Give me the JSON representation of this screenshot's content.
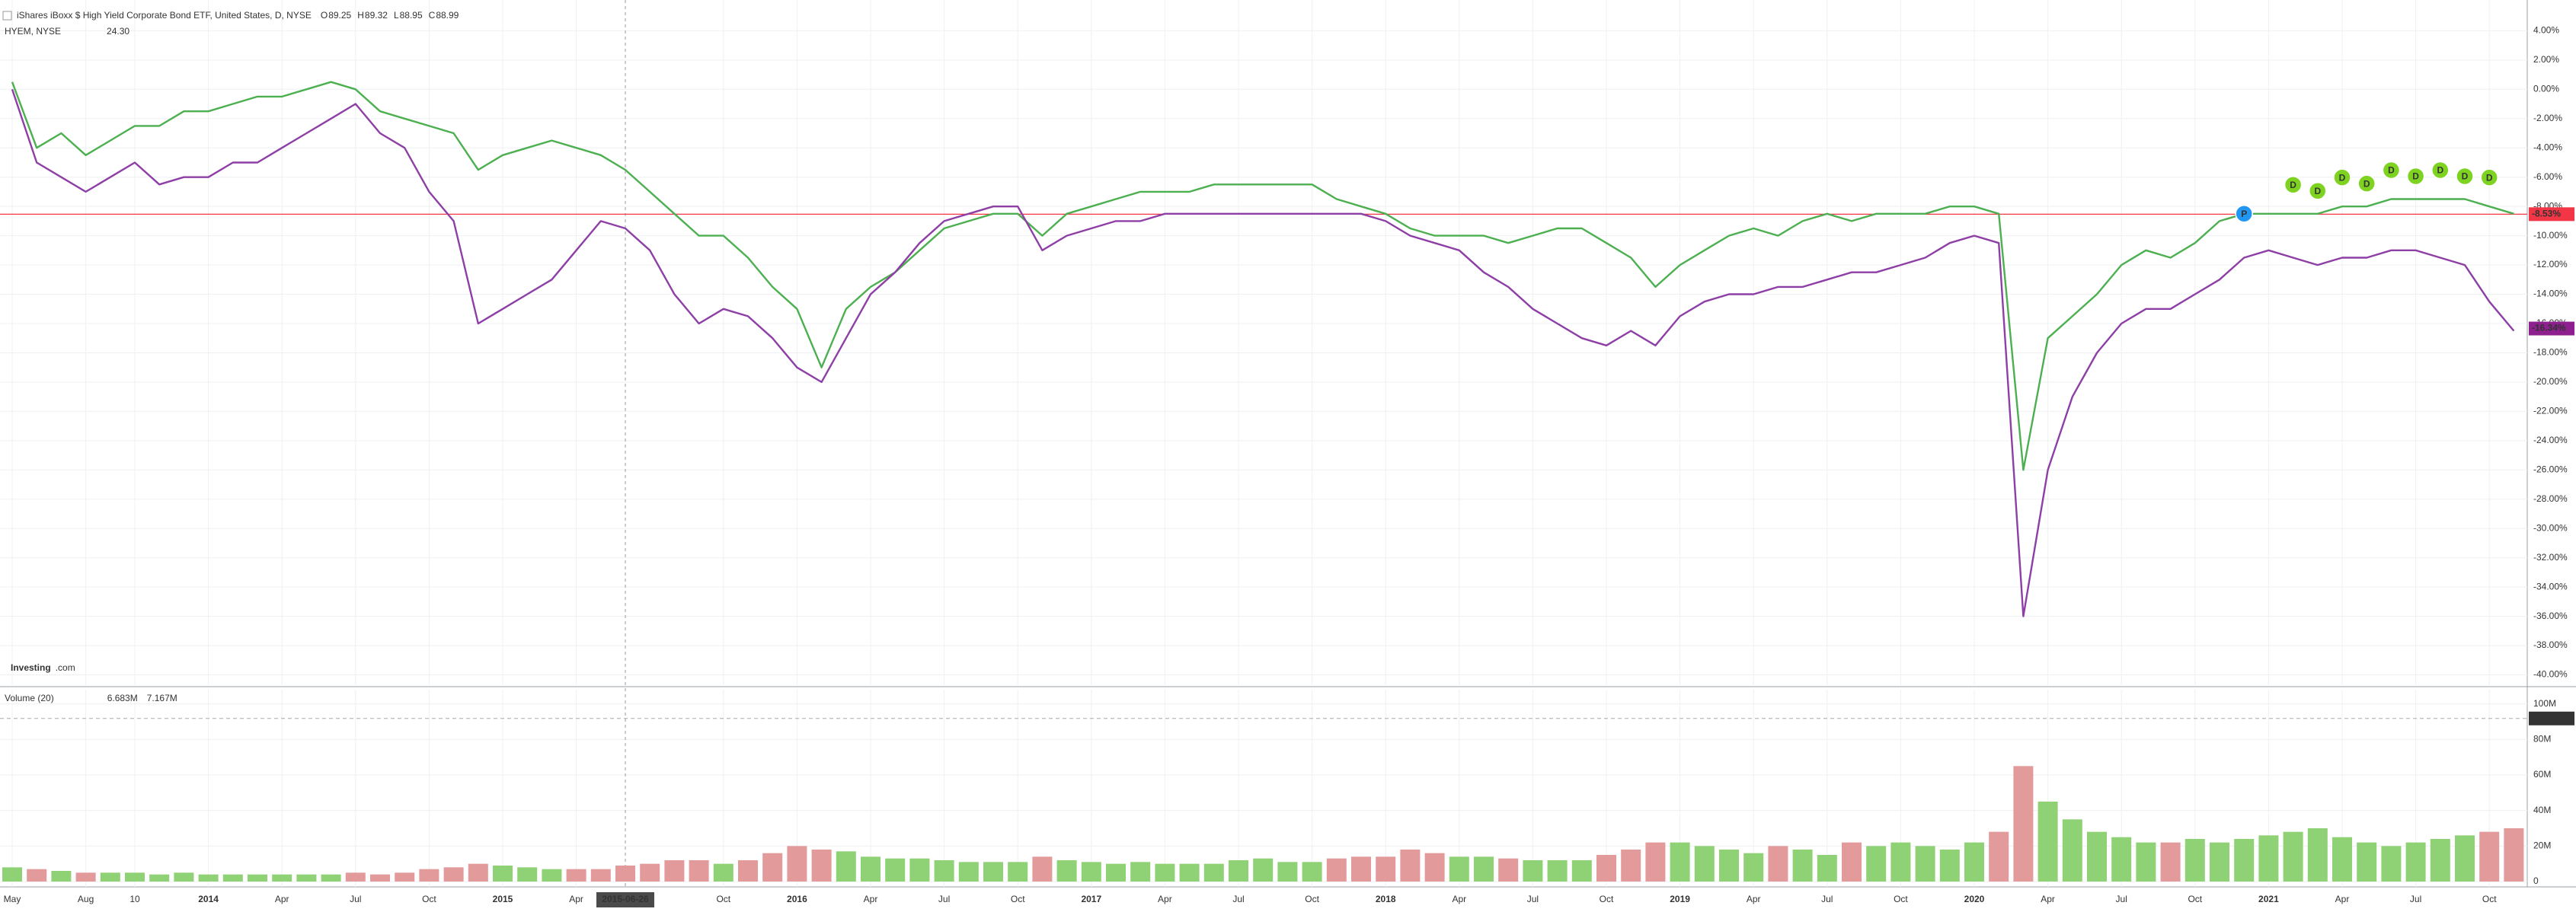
{
  "chart_data": [
    {
      "type": "line",
      "title": "iShares iBoxx $ High Yield Corporate Bond ETF, United States, D, NYSE",
      "ohlc_letters": [
        "O",
        "H",
        "L",
        "C"
      ],
      "ohlc": [
        89.25,
        89.32,
        88.95,
        88.99
      ],
      "logo": "Investing",
      "logo_suffix": ".com",
      "x": [
        "2013-05",
        "2013-06",
        "2013-07",
        "2013-08",
        "2013-09",
        "2013-10",
        "2013-11",
        "2013-12",
        "2014-01",
        "2014-02",
        "2014-03",
        "2014-04",
        "2014-05",
        "2014-06",
        "2014-07",
        "2014-08",
        "2014-09",
        "2014-10",
        "2014-11",
        "2014-12",
        "2015-01",
        "2015-02",
        "2015-03",
        "2015-04",
        "2015-05",
        "2015-06",
        "2015-07",
        "2015-08",
        "2015-09",
        "2015-10",
        "2015-11",
        "2015-12",
        "2016-01",
        "2016-02",
        "2016-03",
        "2016-04",
        "2016-05",
        "2016-06",
        "2016-07",
        "2016-08",
        "2016-09",
        "2016-10",
        "2016-11",
        "2016-12",
        "2017-01",
        "2017-02",
        "2017-03",
        "2017-04",
        "2017-05",
        "2017-06",
        "2017-07",
        "2017-08",
        "2017-09",
        "2017-10",
        "2017-11",
        "2017-12",
        "2018-01",
        "2018-02",
        "2018-03",
        "2018-04",
        "2018-05",
        "2018-06",
        "2018-07",
        "2018-08",
        "2018-09",
        "2018-10",
        "2018-11",
        "2018-12",
        "2019-01",
        "2019-02",
        "2019-03",
        "2019-04",
        "2019-05",
        "2019-06",
        "2019-07",
        "2019-08",
        "2019-09",
        "2019-10",
        "2019-11",
        "2019-12",
        "2020-01",
        "2020-02",
        "2020-03",
        "2020-04",
        "2020-05",
        "2020-06",
        "2020-07",
        "2020-08",
        "2020-09",
        "2020-10",
        "2020-11",
        "2020-12",
        "2021-01",
        "2021-02",
        "2021-03",
        "2021-04",
        "2021-05",
        "2021-06",
        "2021-07",
        "2021-08",
        "2021-09",
        "2021-10",
        "2021-11"
      ],
      "series": [
        {
          "color": "#4caf50",
          "values": [
            0.5,
            -4,
            -3,
            -4.5,
            -3.5,
            -2.5,
            -2.5,
            -1.5,
            -1.5,
            -1,
            -0.5,
            -0.5,
            0,
            0.5,
            0,
            -1.5,
            -2,
            -2.5,
            -3,
            -5.5,
            -4.5,
            -4,
            -3.5,
            -4,
            -4.5,
            -5.5,
            -7,
            -8.5,
            -10,
            -10,
            -11.5,
            -13.5,
            -15,
            -19,
            -15,
            -13.5,
            -12.5,
            -11,
            -9.5,
            -9,
            -8.5,
            -8.5,
            -10,
            -8.5,
            -8,
            -7.5,
            -7,
            -7,
            -7,
            -6.5,
            -6.5,
            -6.5,
            -6.5,
            -6.5,
            -7.5,
            -8,
            -8.5,
            -9.5,
            -10,
            -10,
            -10,
            -10.5,
            -10,
            -9.5,
            -9.5,
            -10.5,
            -11.5,
            -13.5,
            -12,
            -11,
            -10,
            -9.5,
            -10,
            -9,
            -8.5,
            -9,
            -8.5,
            -8.5,
            -8.5,
            -8,
            -8,
            -8.5,
            -26,
            -17,
            -15.5,
            -14,
            -12,
            -11,
            -11.5,
            -10.5,
            -9,
            -8.5,
            -8.5,
            -8.5,
            -8.5,
            -8,
            -8,
            -7.5,
            -7.5,
            -7.5,
            -7.5,
            -8,
            -8.5
          ],
          "last": {
            "value": -8.53,
            "label": "-8.53%",
            "color": "#f23645"
          }
        },
        {
          "name": "HYEM, NYSE",
          "color": "#8e3fa6",
          "quote": {
            "value": 24.3,
            "label": "24.30"
          },
          "values": [
            0,
            -5,
            -6,
            -7,
            -6,
            -5,
            -6.5,
            -6,
            -6,
            -5,
            -5,
            -4,
            -3,
            -2,
            -1,
            -3,
            -4,
            -7,
            -9,
            -16,
            -15,
            -14,
            -13,
            -11,
            -9,
            -9.5,
            -11,
            -14,
            -16,
            -15,
            -15.5,
            -17,
            -19,
            -20,
            -17,
            -14,
            -12.5,
            -10.5,
            -9,
            -8.5,
            -8,
            -8,
            -11,
            -10,
            -9.5,
            -9,
            -9,
            -8.5,
            -8.5,
            -8.5,
            -8.5,
            -8.5,
            -8.5,
            -8.5,
            -8.5,
            -8.5,
            -9,
            -10,
            -10.5,
            -11,
            -12.5,
            -13.5,
            -15,
            -16,
            -17,
            -17.5,
            -16.5,
            -17.5,
            -15.5,
            -14.5,
            -14,
            -14,
            -13.5,
            -13.5,
            -13,
            -12.5,
            -12.5,
            -12,
            -11.5,
            -10.5,
            -10,
            -10.5,
            -36,
            -26,
            -21,
            -18,
            -16,
            -15,
            -15,
            -14,
            -13,
            -11.5,
            -11,
            -11.5,
            -12,
            -11.5,
            -11.5,
            -11,
            -11,
            -11.5,
            -12,
            -14.5,
            -16.5
          ],
          "last": {
            "value": -16.34,
            "label": "-16.34%",
            "color": "#8e1f8e"
          }
        }
      ],
      "events": [
        {
          "x": "2020-12",
          "label": "P",
          "color": "#2196f3"
        },
        {
          "x": "2021-02",
          "label": "D",
          "color": "#7ed321"
        },
        {
          "x": "2021-03",
          "label": "D",
          "color": "#7ed321"
        },
        {
          "x": "2021-04",
          "label": "D",
          "color": "#7ed321"
        },
        {
          "x": "2021-05",
          "label": "D",
          "color": "#7ed321"
        },
        {
          "x": "2021-06",
          "label": "D",
          "color": "#7ed321"
        },
        {
          "x": "2021-07",
          "label": "D",
          "color": "#7ed321"
        },
        {
          "x": "2021-08",
          "label": "D",
          "color": "#7ed321"
        },
        {
          "x": "2021-09",
          "label": "D",
          "color": "#7ed321"
        },
        {
          "x": "2021-10",
          "label": "D",
          "color": "#7ed321"
        }
      ],
      "xticks": [
        {
          "value": "2013-05",
          "label": "May"
        },
        {
          "value": "2013-08",
          "label": "Aug"
        },
        {
          "value": "2013-10",
          "label": "10"
        },
        {
          "value": "2014-01",
          "label": "2014"
        },
        {
          "value": "2014-04",
          "label": "Apr"
        },
        {
          "value": "2014-07",
          "label": "Jul"
        },
        {
          "value": "2014-10",
          "label": "Oct"
        },
        {
          "value": "2015-01",
          "label": "2015"
        },
        {
          "value": "2015-04",
          "label": "Apr"
        },
        {
          "value": "2015-10",
          "label": "Oct"
        },
        {
          "value": "2016-01",
          "label": "2016"
        },
        {
          "value": "2016-04",
          "label": "Apr"
        },
        {
          "value": "2016-07",
          "label": "Jul"
        },
        {
          "value": "2016-10",
          "label": "Oct"
        },
        {
          "value": "2017-01",
          "label": "2017"
        },
        {
          "value": "2017-04",
          "label": "Apr"
        },
        {
          "value": "2017-07",
          "label": "Jul"
        },
        {
          "value": "2017-10",
          "label": "Oct"
        },
        {
          "value": "2018-01",
          "label": "2018"
        },
        {
          "value": "2018-04",
          "label": "Apr"
        },
        {
          "value": "2018-07",
          "label": "Jul"
        },
        {
          "value": "2018-10",
          "label": "Oct"
        },
        {
          "value": "2019-01",
          "label": "2019"
        },
        {
          "value": "2019-04",
          "label": "Apr"
        },
        {
          "value": "2019-07",
          "label": "Jul"
        },
        {
          "value": "2019-10",
          "label": "Oct"
        },
        {
          "value": "2020-01",
          "label": "2020"
        },
        {
          "value": "2020-04",
          "label": "Apr"
        },
        {
          "value": "2020-07",
          "label": "Jul"
        },
        {
          "value": "2020-10",
          "label": "Oct"
        },
        {
          "value": "2021-01",
          "label": "2021"
        },
        {
          "value": "2021-04",
          "label": "Apr"
        },
        {
          "value": "2021-07",
          "label": "Jul"
        },
        {
          "value": "2021-10",
          "label": "Oct"
        }
      ],
      "crosshair": {
        "value": "2015-06",
        "label": "2015-06-26"
      },
      "ylim": [
        -40.7,
        6.1
      ],
      "yticks": [
        {
          "value": 4,
          "label": "4.00%"
        },
        {
          "value": 2,
          "label": "2.00%"
        },
        {
          "value": 0,
          "label": "0.00%"
        },
        {
          "value": -2,
          "label": "-2.00%"
        },
        {
          "value": -4,
          "label": "-4.00%"
        },
        {
          "value": -6,
          "label": "-6.00%"
        },
        {
          "value": -8,
          "label": "-8.00%"
        },
        {
          "value": -10,
          "label": "-10.00%"
        },
        {
          "value": -12,
          "label": "-12.00%"
        },
        {
          "value": -14,
          "label": "-14.00%"
        },
        {
          "value": -16,
          "label": "-16.00%"
        },
        {
          "value": -18,
          "label": "-18.00%"
        },
        {
          "value": -20,
          "label": "-20.00%"
        },
        {
          "value": -22,
          "label": "-22.00%"
        },
        {
          "value": -24,
          "label": "-24.00%"
        },
        {
          "value": -26,
          "label": "-26.00%"
        },
        {
          "value": -28,
          "label": "-28.00%"
        },
        {
          "value": -30,
          "label": "-30.00%"
        },
        {
          "value": -32,
          "label": "-32.00%"
        },
        {
          "value": -34,
          "label": "-34.00%"
        },
        {
          "value": -36,
          "label": "-36.00%"
        },
        {
          "value": -38,
          "label": "-38.00%"
        },
        {
          "value": -40,
          "label": "-40.00%"
        }
      ],
      "grid": true
    },
    {
      "type": "bar",
      "title": "Volume (20)",
      "readouts": [
        {
          "value": 6683000,
          "label": "6.683M",
          "color": "#c0392b"
        },
        {
          "value": 7167000,
          "label": "7.167M",
          "color": "#333333"
        }
      ],
      "up_color": "#8fd175",
      "down_color": "#e39a9a",
      "values": [
        8000000,
        7000000,
        6000000,
        5000000,
        5000000,
        5000000,
        4000000,
        5000000,
        4000000,
        4000000,
        4000000,
        4000000,
        4000000,
        4000000,
        5000000,
        4000000,
        5000000,
        7000000,
        8000000,
        10000000,
        9000000,
        8000000,
        7000000,
        7000000,
        7000000,
        9000000,
        10000000,
        12000000,
        12000000,
        10000000,
        12000000,
        16000000,
        20000000,
        18000000,
        17000000,
        14000000,
        13000000,
        13000000,
        12000000,
        11000000,
        11000000,
        11000000,
        14000000,
        12000000,
        11000000,
        10000000,
        11000000,
        10000000,
        10000000,
        10000000,
        12000000,
        13000000,
        11000000,
        11000000,
        13000000,
        14000000,
        14000000,
        18000000,
        16000000,
        14000000,
        14000000,
        13000000,
        12000000,
        12000000,
        12000000,
        15000000,
        18000000,
        22000000,
        22000000,
        20000000,
        18000000,
        16000000,
        20000000,
        18000000,
        15000000,
        22000000,
        20000000,
        22000000,
        20000000,
        18000000,
        22000000,
        28000000,
        65000000,
        45000000,
        35000000,
        28000000,
        25000000,
        22000000,
        22000000,
        24000000,
        22000000,
        24000000,
        26000000,
        28000000,
        30000000,
        25000000,
        22000000,
        20000000,
        22000000,
        24000000,
        26000000,
        28000000,
        30000000
      ],
      "highlight": {
        "value": 91813000,
        "label": "91.813M"
      },
      "ylim": [
        -3000000,
        108000000
      ],
      "yticks": [
        0,
        {
          "value": 20000000,
          "label": "20M"
        },
        {
          "value": 40000000,
          "label": "40M"
        },
        {
          "value": 60000000,
          "label": "60M"
        },
        {
          "value": 80000000,
          "label": "80M"
        },
        {
          "value": 100000000,
          "label": "100M"
        }
      ],
      "grid": true
    }
  ]
}
